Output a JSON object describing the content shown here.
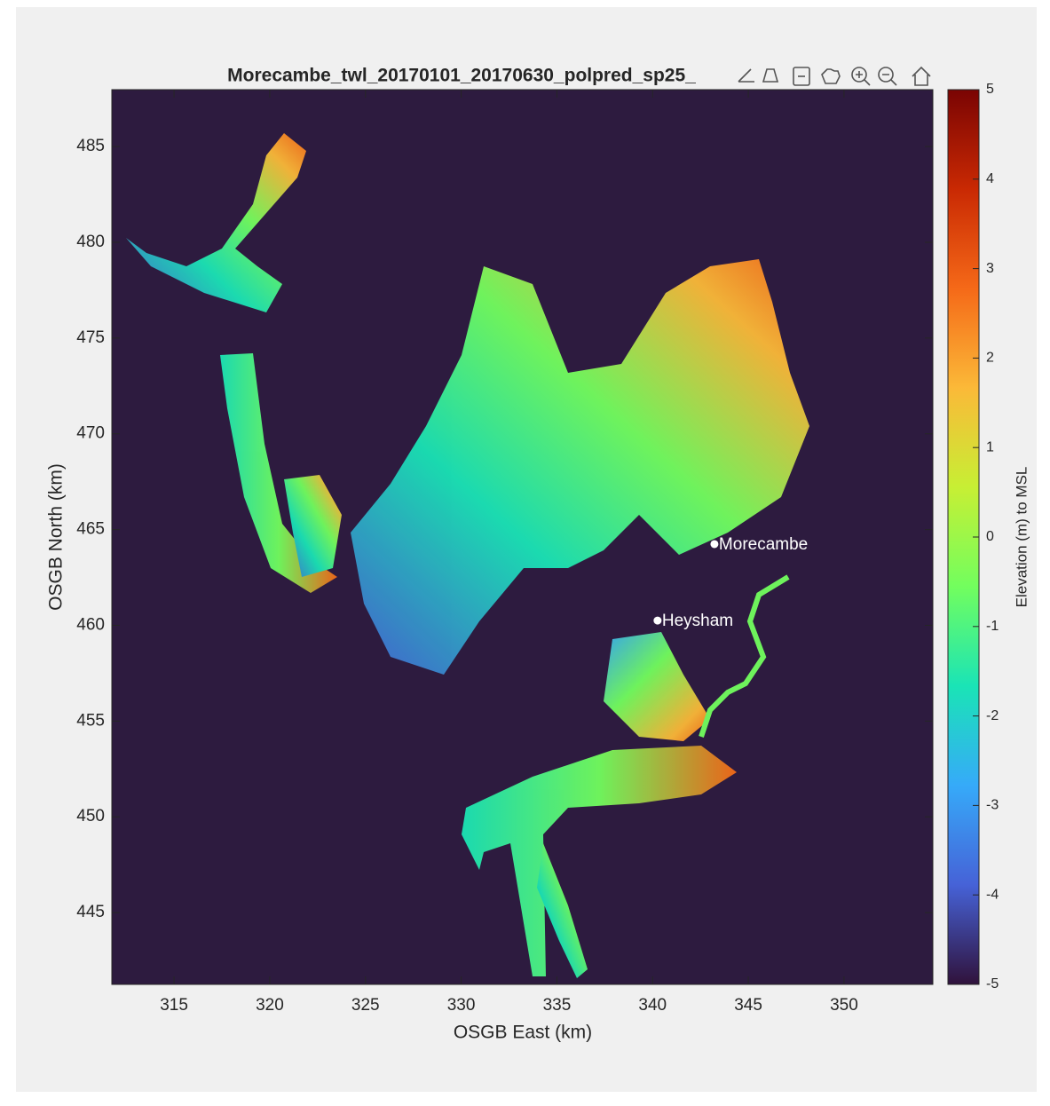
{
  "chart_data": {
    "type": "image",
    "title": "Morecambe_twl_20170101_20170630_polpred_sp25_",
    "xlabel": "OSGB East (km)",
    "ylabel": "OSGB North (km)",
    "xlim": [
      311.75,
      354.64
    ],
    "ylim": [
      441.25,
      487.97
    ],
    "xticks": [
      315,
      320,
      325,
      330,
      335,
      340,
      345,
      350
    ],
    "yticks": [
      445,
      450,
      455,
      460,
      465,
      470,
      475,
      480,
      485
    ],
    "background_color": "#2d1b3f",
    "annotations": [
      {
        "text": "Morecambe",
        "x": 343.23,
        "y": 464.24
      },
      {
        "text": "Heysham",
        "x": 340.26,
        "y": 460.25
      }
    ],
    "colorbar": {
      "label": "Elevation (m) to MSL",
      "clim": [
        -5,
        5
      ],
      "ticks": [
        -5,
        -4,
        -3,
        -2,
        -1,
        0,
        1,
        2,
        3,
        4,
        5
      ],
      "colormap": [
        "#30123b",
        "#4662d7",
        "#36aaf9",
        "#1ae4b6",
        "#72fe5e",
        "#c7ef34",
        "#fbb938",
        "#f56918",
        "#c92903",
        "#7a0403"
      ]
    }
  }
}
